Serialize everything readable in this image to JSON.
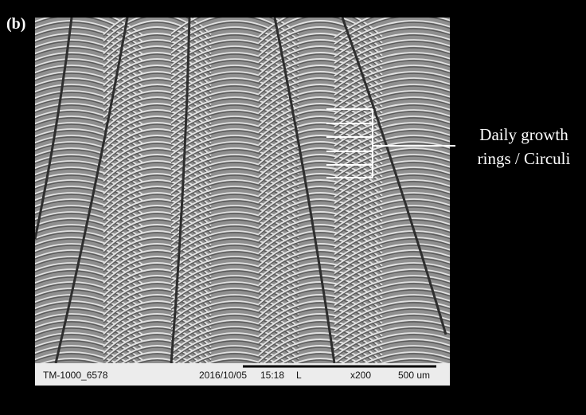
{
  "panel_label": "(b)",
  "annotation": {
    "lines": [
      "Daily growth",
      "rings / Circuli"
    ]
  },
  "info_bar": {
    "id": "TM-1000_6578",
    "date": "2016/10/05",
    "time": "15:18",
    "mode": "L",
    "magnification": "x200",
    "scale": "500 um"
  }
}
